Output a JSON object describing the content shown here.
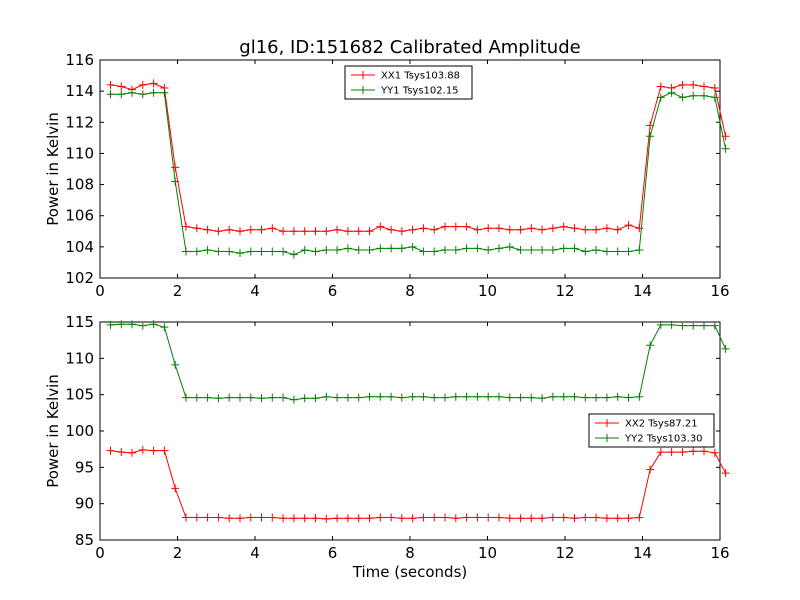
{
  "chart_data": [
    {
      "type": "line",
      "title": "gl16, ID:151682 Calibrated Amplitude",
      "xlabel": "",
      "ylabel": "Power in Kelvin",
      "xlim": [
        0,
        16
      ],
      "ylim": [
        102,
        116
      ],
      "xticks": [
        0,
        2,
        4,
        6,
        8,
        10,
        12,
        14,
        16
      ],
      "yticks": [
        102,
        104,
        106,
        108,
        110,
        112,
        114,
        116
      ],
      "legend_position": "top-center",
      "series": [
        {
          "name": "XX1 Tsys103.88",
          "color": "#ff0000",
          "values": [
            114.4,
            114.3,
            114.1,
            114.4,
            114.5,
            114.2,
            109.1,
            105.3,
            105.2,
            105.1,
            105.0,
            105.1,
            105.0,
            105.1,
            105.1,
            105.2,
            105.0,
            105.0,
            105.0,
            105.0,
            105.0,
            105.1,
            105.0,
            105.0,
            105.0,
            105.3,
            105.1,
            105.0,
            105.1,
            105.2,
            105.1,
            105.3,
            105.3,
            105.3,
            105.1,
            105.2,
            105.2,
            105.1,
            105.1,
            105.2,
            105.1,
            105.2,
            105.3,
            105.2,
            105.1,
            105.1,
            105.2,
            105.1,
            105.4,
            105.2,
            111.8,
            114.3,
            114.2,
            114.4,
            114.4,
            114.3,
            114.2,
            111.1
          ]
        },
        {
          "name": "YY1 Tsys102.15",
          "color": "#008000",
          "values": [
            113.8,
            113.8,
            113.9,
            113.8,
            113.9,
            113.9,
            108.2,
            103.7,
            103.7,
            103.8,
            103.7,
            103.7,
            103.6,
            103.7,
            103.7,
            103.7,
            103.7,
            103.5,
            103.8,
            103.7,
            103.8,
            103.8,
            103.9,
            103.8,
            103.8,
            103.9,
            103.9,
            103.9,
            104.0,
            103.7,
            103.7,
            103.8,
            103.8,
            103.9,
            103.9,
            103.8,
            103.9,
            104.0,
            103.8,
            103.8,
            103.8,
            103.8,
            103.9,
            103.9,
            103.7,
            103.8,
            103.7,
            103.7,
            103.7,
            103.8,
            111.1,
            113.6,
            113.9,
            113.6,
            113.7,
            113.7,
            113.6,
            110.3
          ]
        }
      ]
    },
    {
      "type": "line",
      "title": "",
      "xlabel": "Time (seconds)",
      "ylabel": "Power in Kelvin",
      "xlim": [
        0,
        16
      ],
      "ylim": [
        85,
        115
      ],
      "xticks": [
        0,
        2,
        4,
        6,
        8,
        10,
        12,
        14,
        16
      ],
      "yticks": [
        85,
        90,
        95,
        100,
        105,
        110,
        115
      ],
      "legend_position": "center-right",
      "series": [
        {
          "name": "XX2 Tsys87.21",
          "color": "#ff0000",
          "values": [
            97.3,
            97.1,
            97.0,
            97.4,
            97.3,
            97.3,
            92.1,
            88.1,
            88.1,
            88.1,
            88.1,
            88.0,
            88.0,
            88.1,
            88.1,
            88.1,
            88.0,
            88.0,
            88.0,
            88.0,
            87.9,
            88.0,
            88.0,
            88.0,
            88.0,
            88.1,
            88.1,
            88.0,
            88.0,
            88.1,
            88.1,
            88.1,
            88.0,
            88.1,
            88.1,
            88.1,
            88.1,
            88.0,
            88.0,
            88.0,
            88.0,
            88.1,
            88.1,
            88.0,
            88.1,
            88.1,
            88.0,
            88.0,
            88.0,
            88.1,
            94.7,
            97.1,
            97.1,
            97.1,
            97.2,
            97.2,
            97.0,
            94.2
          ]
        },
        {
          "name": "YY2 Tsys103.30",
          "color": "#008000",
          "values": [
            114.6,
            114.7,
            114.7,
            114.5,
            114.7,
            114.3,
            109.1,
            104.6,
            104.6,
            104.6,
            104.5,
            104.6,
            104.6,
            104.6,
            104.5,
            104.6,
            104.6,
            104.3,
            104.5,
            104.5,
            104.7,
            104.6,
            104.6,
            104.6,
            104.7,
            104.7,
            104.7,
            104.6,
            104.7,
            104.7,
            104.6,
            104.6,
            104.7,
            104.7,
            104.7,
            104.7,
            104.7,
            104.6,
            104.6,
            104.6,
            104.5,
            104.7,
            104.7,
            104.7,
            104.6,
            104.6,
            104.6,
            104.7,
            104.6,
            104.7,
            111.8,
            114.6,
            114.6,
            114.5,
            114.5,
            114.5,
            114.5,
            111.3
          ]
        }
      ]
    }
  ],
  "time_axis": {
    "start": 0.27,
    "step": 0.2785
  }
}
